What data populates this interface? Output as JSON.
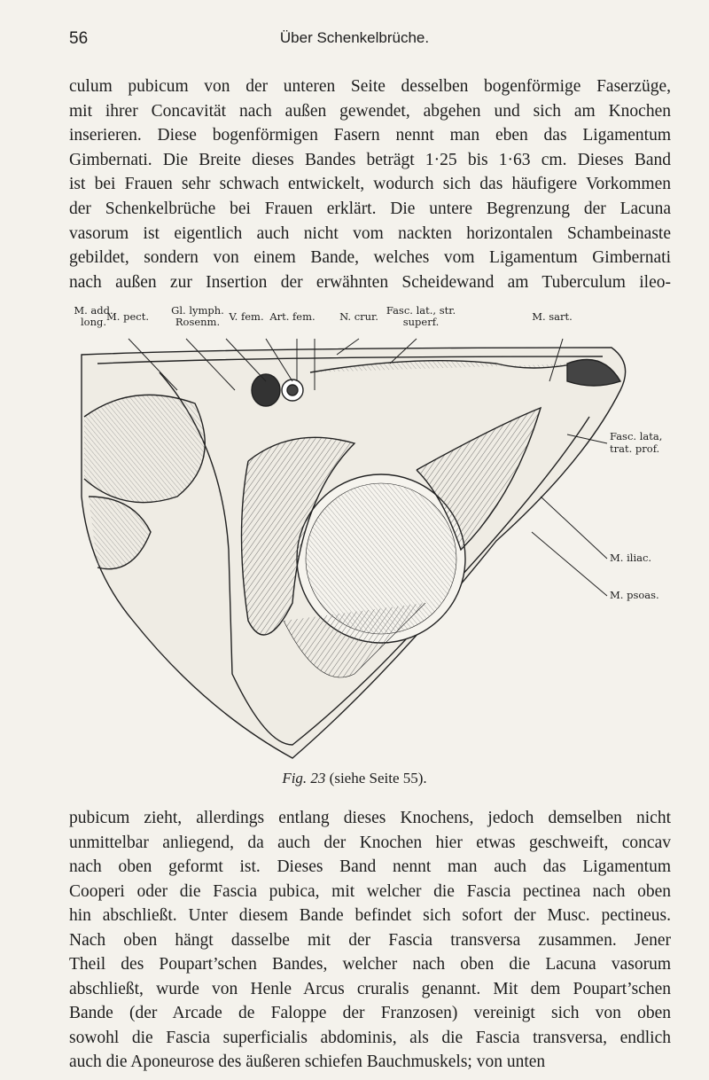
{
  "header": {
    "page_number": "56",
    "title": "Über Schenkelbrüche."
  },
  "paragraph_1": [
    "culum pubicum von der unteren Seite desselben bogenförmige Faserzüge,",
    "mit ihrer Concavität nach außen gewendet, abgehen und sich am Knochen",
    "inserieren. Diese bogenförmigen Fasern nennt man eben das Ligamentum",
    "Gimbernati. Die Breite dieses Bandes beträgt 1·25 bis 1·63 cm. Dieses Band",
    "ist bei Frauen sehr schwach entwickelt, wodurch sich das häufigere Vorkommen",
    "der Schenkelbrüche bei Frauen erklärt. Die untere Begrenzung der Lacuna",
    "vasorum ist eigentlich auch nicht vom nackten horizontalen Schambeinaste",
    "gebildet, sondern von einem Bande, welches vom Ligamentum Gimbernati",
    "nach außen zur Insertion der erwähnten Scheidewand am Tuberculum ileo-"
  ],
  "figure": {
    "top_labels": [
      "M. add. long.",
      "M. pect.",
      "Gl. lymph. Rosenm.",
      "V. fem.",
      "Art. fem.",
      "N. crur.",
      "Fasc. lat., str. superf.",
      "M. sart."
    ],
    "right_labels": [
      "Fasc. lata, trat. prof.",
      "M. iliac.",
      "M. psoas."
    ],
    "caption": {
      "label": "Fig. 23",
      "text": "(siehe Seite 55)."
    }
  },
  "paragraph_2": [
    "pubicum zieht, allerdings entlang dieses Knochens, jedoch demselben nicht",
    "unmittelbar anliegend, da auch der Knochen hier etwas geschweift, concav",
    "nach oben geformt ist. Dieses Band nennt man auch das Ligamentum",
    "Cooperi oder die Fascia pubica, mit welcher die Fascia pectinea nach oben",
    "hin abschließt. Unter diesem Bande befindet sich sofort der Musc. pectineus.",
    "Nach oben hängt dasselbe mit der Fascia transversa zusammen. Jener",
    "Theil des Poupart’schen Bandes, welcher nach oben die Lacuna vasorum",
    "abschließt, wurde von Henle Arcus cruralis genannt. Mit dem Poupart’schen",
    "Bande (der Arcade de Faloppe der Franzosen) vereinigt sich von oben",
    "sowohl die Fascia superficialis abdominis, als die Fascia transversa, endlich",
    "auch die Aponeurose des äußeren schiefen Bauchmuskels; von unten"
  ]
}
